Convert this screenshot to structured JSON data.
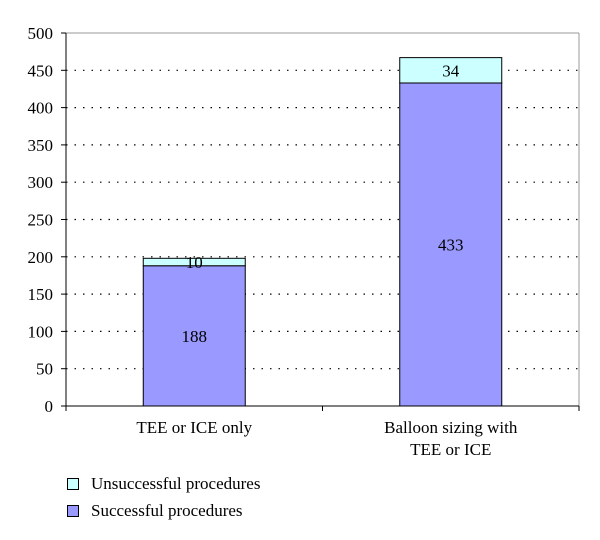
{
  "chart_data": {
    "type": "bar",
    "stacked": true,
    "categories": [
      "TEE or ICE only",
      "Balloon sizing with TEE or ICE"
    ],
    "category_lines": [
      [
        "TEE or ICE only"
      ],
      [
        "Balloon sizing with",
        "TEE or ICE"
      ]
    ],
    "series": [
      {
        "name": "Successful procedures",
        "values": [
          188,
          433
        ],
        "color": "#9999ff"
      },
      {
        "name": "Unsuccessful procedures",
        "values": [
          10,
          34
        ],
        "color": "#ccffff"
      }
    ],
    "ylim": [
      0,
      500
    ],
    "yticks": [
      0,
      50,
      100,
      150,
      200,
      250,
      300,
      350,
      400,
      450,
      500
    ],
    "grid": true,
    "legend_position": "bottom-left"
  },
  "legend": {
    "items": [
      {
        "label": "Unsuccessful procedures",
        "color": "#ccffff"
      },
      {
        "label": "Successful procedures",
        "color": "#9999ff"
      }
    ]
  }
}
